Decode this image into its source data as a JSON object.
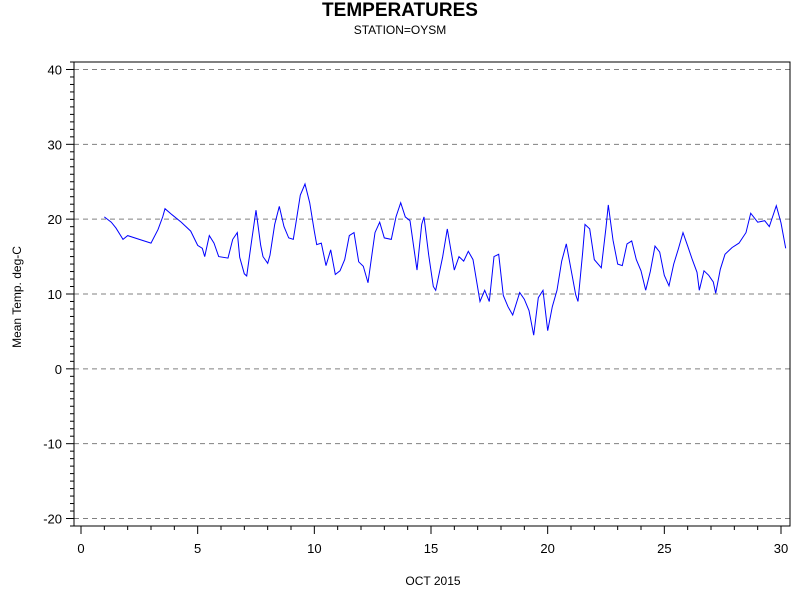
{
  "chart_data": {
    "type": "line",
    "title": "TEMPERATURES",
    "subtitle": "STATION=OYSM",
    "xlabel": "OCT 2015",
    "ylabel": "Mean Temp. deg-C",
    "xlim": [
      0,
      30
    ],
    "ylim": [
      -21,
      41
    ],
    "xticks": [
      "0",
      "5",
      "10",
      "15",
      "20",
      "25",
      "30"
    ],
    "yticks": [
      "-20",
      "-10",
      "0",
      "10",
      "20",
      "30",
      "40"
    ],
    "grid": "horizontal dashed",
    "line_color": "#0000ff",
    "series": [
      {
        "values": [
          [
            1.0,
            20.3
          ],
          [
            1.3,
            19.6
          ],
          [
            1.5,
            18.8
          ],
          [
            1.8,
            17.3
          ],
          [
            2.0,
            17.8
          ],
          [
            2.5,
            17.3
          ],
          [
            3.0,
            16.8
          ],
          [
            3.3,
            18.6
          ],
          [
            3.5,
            20.3
          ],
          [
            3.6,
            21.4
          ],
          [
            3.9,
            20.6
          ],
          [
            4.3,
            19.6
          ],
          [
            4.7,
            18.4
          ],
          [
            5.0,
            16.5
          ],
          [
            5.2,
            16.1
          ],
          [
            5.3,
            15.0
          ],
          [
            5.5,
            17.8
          ],
          [
            5.7,
            16.8
          ],
          [
            5.9,
            15.0
          ],
          [
            6.3,
            14.8
          ],
          [
            6.5,
            17.3
          ],
          [
            6.7,
            18.2
          ],
          [
            6.8,
            14.9
          ],
          [
            7.0,
            12.7
          ],
          [
            7.1,
            12.4
          ],
          [
            7.3,
            16.8
          ],
          [
            7.5,
            21.2
          ],
          [
            7.7,
            16.5
          ],
          [
            7.8,
            15.0
          ],
          [
            8.0,
            14.1
          ],
          [
            8.1,
            15.2
          ],
          [
            8.3,
            19.3
          ],
          [
            8.5,
            21.7
          ],
          [
            8.7,
            19.0
          ],
          [
            8.9,
            17.5
          ],
          [
            9.1,
            17.3
          ],
          [
            9.2,
            19.3
          ],
          [
            9.4,
            23.2
          ],
          [
            9.6,
            24.7
          ],
          [
            9.8,
            22.2
          ],
          [
            10.0,
            18.4
          ],
          [
            10.1,
            16.6
          ],
          [
            10.3,
            16.8
          ],
          [
            10.5,
            13.8
          ],
          [
            10.7,
            15.9
          ],
          [
            10.9,
            12.6
          ],
          [
            11.1,
            13.1
          ],
          [
            11.3,
            14.6
          ],
          [
            11.5,
            17.8
          ],
          [
            11.7,
            18.2
          ],
          [
            11.9,
            14.3
          ],
          [
            12.1,
            13.7
          ],
          [
            12.3,
            11.5
          ],
          [
            12.6,
            18.2
          ],
          [
            12.8,
            19.6
          ],
          [
            13.0,
            17.5
          ],
          [
            13.3,
            17.3
          ],
          [
            13.5,
            20.3
          ],
          [
            13.7,
            22.2
          ],
          [
            13.9,
            20.3
          ],
          [
            14.1,
            19.8
          ],
          [
            14.4,
            13.2
          ],
          [
            14.6,
            19.3
          ],
          [
            14.7,
            20.3
          ],
          [
            14.9,
            15.2
          ],
          [
            15.1,
            11.0
          ],
          [
            15.2,
            10.5
          ],
          [
            15.5,
            15.0
          ],
          [
            15.7,
            18.7
          ],
          [
            15.8,
            16.8
          ],
          [
            16.0,
            13.2
          ],
          [
            16.2,
            15.0
          ],
          [
            16.4,
            14.4
          ],
          [
            16.6,
            15.7
          ],
          [
            16.8,
            14.6
          ],
          [
            17.1,
            9.0
          ],
          [
            17.3,
            10.5
          ],
          [
            17.5,
            9.0
          ],
          [
            17.7,
            15.0
          ],
          [
            17.9,
            15.3
          ],
          [
            18.1,
            9.8
          ],
          [
            18.3,
            8.3
          ],
          [
            18.5,
            7.2
          ],
          [
            18.8,
            10.2
          ],
          [
            19.0,
            9.3
          ],
          [
            19.2,
            7.8
          ],
          [
            19.4,
            4.5
          ],
          [
            19.6,
            9.5
          ],
          [
            19.8,
            10.5
          ],
          [
            20.0,
            5.1
          ],
          [
            20.2,
            8.3
          ],
          [
            20.4,
            10.5
          ],
          [
            20.6,
            14.4
          ],
          [
            20.8,
            16.7
          ],
          [
            21.0,
            13.3
          ],
          [
            21.2,
            9.9
          ],
          [
            21.3,
            9.0
          ],
          [
            21.5,
            15.6
          ],
          [
            21.6,
            19.3
          ],
          [
            21.8,
            18.7
          ],
          [
            22.0,
            14.6
          ],
          [
            22.3,
            13.5
          ],
          [
            22.5,
            18.9
          ],
          [
            22.6,
            21.9
          ],
          [
            22.8,
            17.2
          ],
          [
            23.0,
            14.0
          ],
          [
            23.2,
            13.8
          ],
          [
            23.4,
            16.7
          ],
          [
            23.6,
            17.1
          ],
          [
            23.8,
            14.6
          ],
          [
            24.0,
            13.1
          ],
          [
            24.2,
            10.5
          ],
          [
            24.4,
            13.0
          ],
          [
            24.6,
            16.4
          ],
          [
            24.8,
            15.6
          ],
          [
            25.0,
            12.5
          ],
          [
            25.2,
            11.1
          ],
          [
            25.4,
            14.0
          ],
          [
            25.6,
            16.0
          ],
          [
            25.8,
            18.2
          ],
          [
            26.0,
            16.4
          ],
          [
            26.2,
            14.6
          ],
          [
            26.4,
            12.9
          ],
          [
            26.5,
            10.5
          ],
          [
            26.7,
            13.1
          ],
          [
            26.9,
            12.5
          ],
          [
            27.1,
            11.6
          ],
          [
            27.2,
            10.1
          ],
          [
            27.4,
            13.3
          ],
          [
            27.6,
            15.3
          ],
          [
            27.9,
            16.2
          ],
          [
            28.2,
            16.8
          ],
          [
            28.5,
            18.2
          ],
          [
            28.7,
            20.8
          ],
          [
            29.0,
            19.6
          ],
          [
            29.3,
            19.8
          ],
          [
            29.5,
            19.0
          ],
          [
            29.8,
            21.8
          ],
          [
            30.0,
            19.5
          ],
          [
            30.2,
            16.1
          ]
        ]
      }
    ]
  }
}
